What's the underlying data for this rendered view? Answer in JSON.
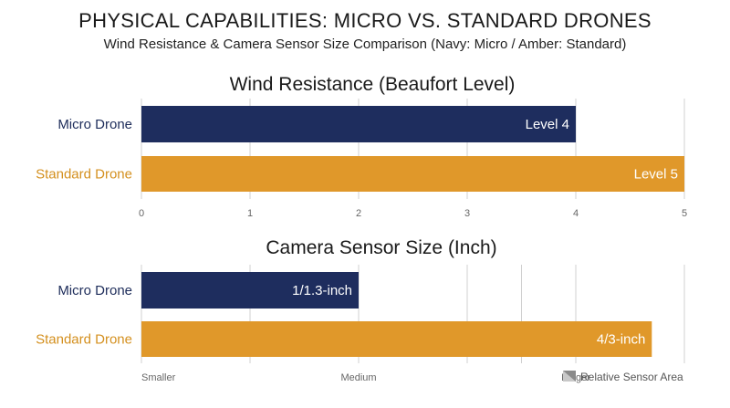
{
  "title": "PHYSICAL CAPABILITIES: MICRO VS. STANDARD DRONES",
  "subtitle": "Wind Resistance & Camera Sensor Size Comparison (Navy: Micro / Amber: Standard)",
  "colors": {
    "micro": "#1e2d5e",
    "standard": "#e0982a",
    "grid": "#d0d0d0",
    "legend_icon": "#8a8a8a"
  },
  "chart_data": [
    {
      "type": "bar",
      "orientation": "horizontal",
      "title": "Wind Resistance (Beaufort Level)",
      "categories": [
        "Micro Drone",
        "Standard Drone"
      ],
      "values": [
        4,
        5
      ],
      "value_labels": [
        "Level 4",
        "Level 5"
      ],
      "xlim": [
        0,
        5
      ],
      "x_ticks": [
        "0",
        "1",
        "2",
        "3",
        "4",
        "5"
      ],
      "grid": true
    },
    {
      "type": "bar",
      "orientation": "horizontal",
      "title": "Camera Sensor Size (Inch)",
      "categories": [
        "Micro Drone",
        "Standard Drone"
      ],
      "values": [
        0.4,
        0.94
      ],
      "value_labels": [
        "1/1.3-inch",
        "4/3-inch"
      ],
      "xlim": [
        0,
        1
      ],
      "x_ticks": [
        "Smaller",
        "Medium",
        "Larger"
      ],
      "x_tick_positions": [
        0,
        0.4,
        0.8
      ],
      "legend": {
        "label": "Relative Sensor Area",
        "icon": "sensor-area-icon",
        "placement": "bottom-right"
      },
      "grid": true
    }
  ]
}
